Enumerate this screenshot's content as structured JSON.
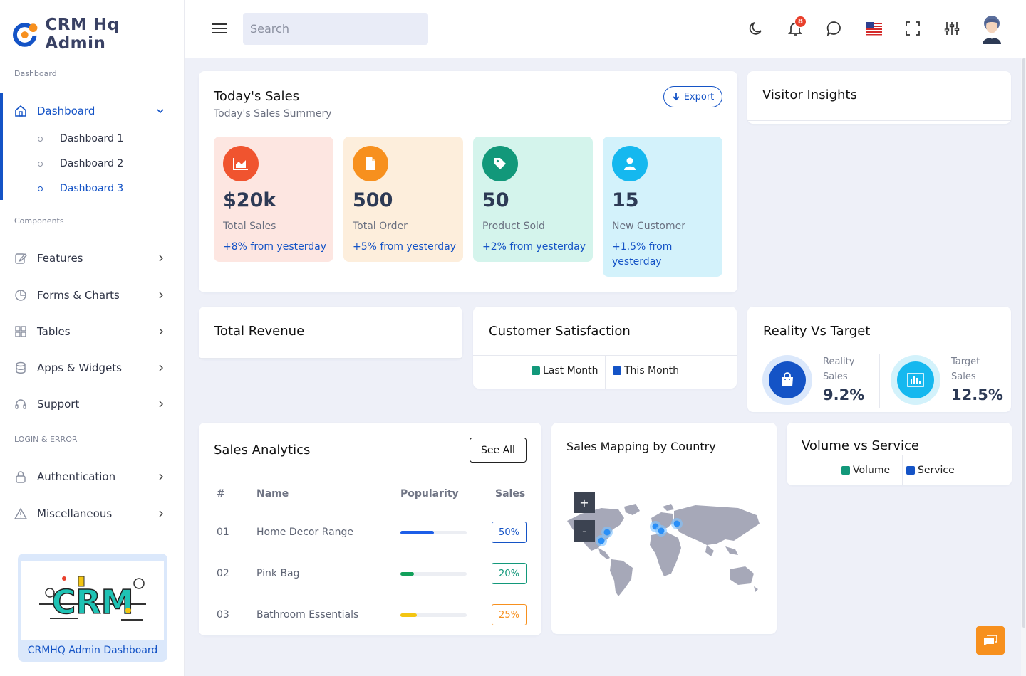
{
  "brand": {
    "name": "CRM Hq Admin"
  },
  "header": {
    "search_placeholder": "Search",
    "notification_count": "8",
    "icons": [
      "hamburger-icon",
      "moon-icon",
      "bell-icon",
      "chat-icon",
      "us-flag-icon",
      "fullscreen-icon",
      "sliders-icon",
      "avatar"
    ]
  },
  "sidebar": {
    "section_dashboard": "Dashboard",
    "section_components": "Components",
    "section_login": "LOGIN & ERROR",
    "dashboard_label": "Dashboard",
    "sub": [
      "Dashboard 1",
      "Dashboard 2",
      "Dashboard 3"
    ],
    "items": [
      "Features",
      "Forms & Charts",
      "Tables",
      "Apps & Widgets",
      "Support"
    ],
    "auth_items": [
      "Authentication",
      "Miscellaneous"
    ],
    "promo_text": "CRMHQ Admin Dashboard",
    "promo_logo": "CRM"
  },
  "todays_sales": {
    "title": "Today's Sales",
    "subtitle": "Today's Sales Summery",
    "export_label": "Export",
    "stats": [
      {
        "value": "$20k",
        "label": "Total Sales",
        "change": "+8% from yesterday",
        "bg": "#fde6e1",
        "icon_bg": "#f0542f",
        "icon": "chart-icon"
      },
      {
        "value": "500",
        "label": "Total Order",
        "change": "+5% from yesterday",
        "bg": "#fdeedc",
        "icon_bg": "#f7901e",
        "icon": "document-icon"
      },
      {
        "value": "50",
        "label": "Product Sold",
        "change": "+2% from yesterday",
        "bg": "#d4f4ec",
        "icon_bg": "#12987a",
        "icon": "tag-icon"
      },
      {
        "value": "15",
        "label": "New Customer",
        "change": "+1.5% from yesterday",
        "bg": "#d3f2fb",
        "icon_bg": "#15b8ef",
        "icon": "user-icon"
      }
    ]
  },
  "visitor_insights": {
    "title": "Visitor Insights"
  },
  "total_revenue": {
    "title": "Total Revenue"
  },
  "customer_satisfaction": {
    "title": "Customer Satisfaction",
    "legend": [
      {
        "label": "Last Month",
        "color": "#12987a"
      },
      {
        "label": "This Month",
        "color": "#1453c6"
      }
    ]
  },
  "reality_target": {
    "title": "Reality Vs Target",
    "reality": {
      "line1": "Reality",
      "line2": "Sales",
      "value": "9.2%"
    },
    "target": {
      "line1": "Target",
      "line2": "Sales",
      "value": "12.5%"
    }
  },
  "sales_analytics": {
    "title": "Sales Analytics",
    "see_all": "See All",
    "columns": [
      "#",
      "Name",
      "Popularity",
      "Sales"
    ],
    "rows": [
      {
        "num": "01",
        "name": "Home Decor Range",
        "popularity": 0.5,
        "sales": "50%",
        "color": "#1d5ee8",
        "text_color": "#1453c6",
        "border": "#1453c6"
      },
      {
        "num": "02",
        "name": "Pink Bag",
        "popularity": 0.2,
        "sales": "20%",
        "color": "#12a05a",
        "text_color": "#12987a",
        "border": "#12987a"
      },
      {
        "num": "03",
        "name": "Bathroom Essentials",
        "popularity": 0.25,
        "sales": "25%",
        "color": "#f3c512",
        "text_color": "#f7901e",
        "border": "#f7901e"
      }
    ]
  },
  "sales_mapping": {
    "title": "Sales Mapping by Country",
    "zoom_in": "+",
    "zoom_out": "-"
  },
  "volume_service": {
    "title": "Volume vs Service",
    "legend": [
      {
        "label": "Volume",
        "color": "#12987a"
      },
      {
        "label": "Service",
        "color": "#1453c6"
      }
    ]
  }
}
